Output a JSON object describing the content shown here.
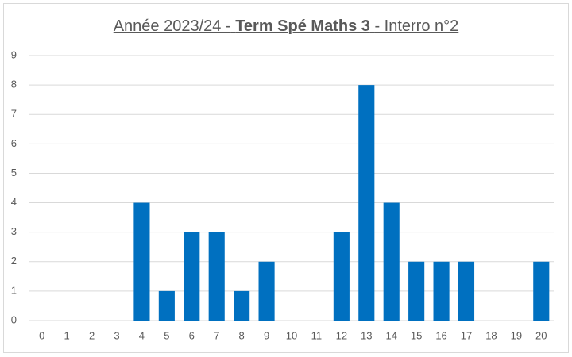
{
  "chart_data": {
    "type": "bar",
    "title": [
      "Année 2023/24 -",
      "Term Spé Maths 3",
      "- Interro n°2"
    ],
    "categories": [
      "0",
      "1",
      "2",
      "3",
      "4",
      "5",
      "6",
      "7",
      "8",
      "9",
      "10",
      "11",
      "12",
      "13",
      "14",
      "15",
      "16",
      "17",
      "18",
      "19",
      "20"
    ],
    "values": [
      0,
      0,
      0,
      0,
      4,
      1,
      3,
      3,
      1,
      2,
      0,
      0,
      3,
      8,
      4,
      2,
      2,
      2,
      0,
      0,
      2
    ],
    "color": "#0070c0",
    "ylim": [
      0,
      9
    ],
    "yticks": [
      0,
      1,
      2,
      3,
      4,
      5,
      6,
      7,
      8,
      9
    ],
    "grid": true
  }
}
